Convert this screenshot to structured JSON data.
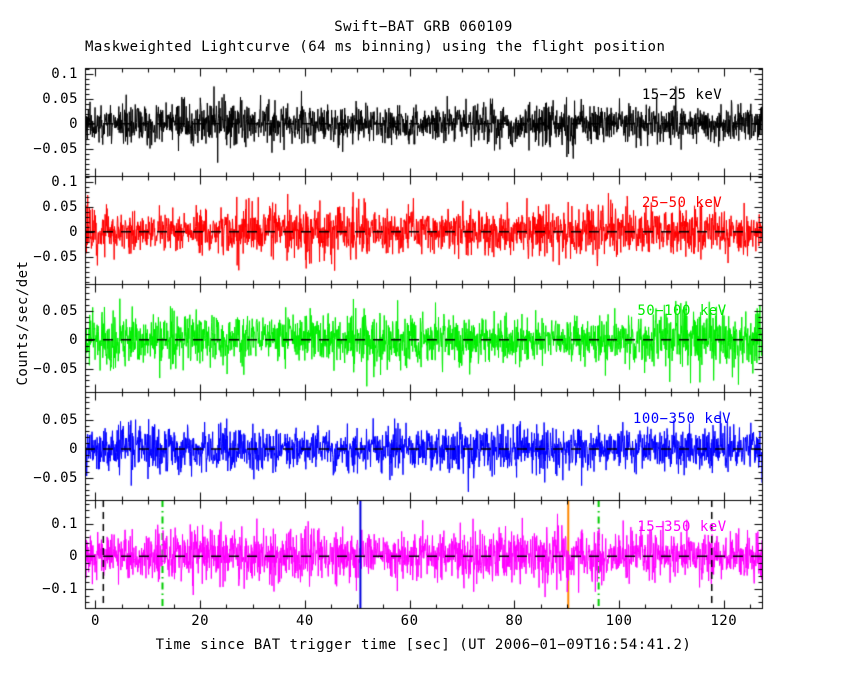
{
  "header": {
    "title": "Swift−BAT GRB 060109",
    "subtitle": "Maskweighted Lightcurve (64 ms binning) using the flight position"
  },
  "axes": {
    "xlabel": "Time since BAT trigger time [sec] (UT 2006−01−09T16:54:41.2)",
    "ylabel": "Counts/sec/det"
  },
  "chart_data": {
    "type": "line",
    "description": "Five stacked mask-weighted lightcurve panels of zero-mean gaussian-like noise (64 ms bins), one per energy band; no obvious burst structure. Dashed black horizontal line at 0 in every panel.",
    "bin_seconds": 0.064,
    "trigger_utc": "2006-01-09T16:54:41.2",
    "x_axis": {
      "min": -2.0,
      "max": 127.3,
      "major_ticks": [
        0,
        20,
        40,
        60,
        80,
        100,
        120
      ],
      "minor_step": 5,
      "unit": "sec"
    },
    "y_unit": "Counts/sec/det",
    "panels": [
      {
        "label": "15−25 keV",
        "color": "#000000",
        "ylim": [
          -0.105,
          0.112
        ],
        "yticks": [
          0.1,
          0.05,
          0,
          -0.05
        ],
        "y_minor_step": 0.01,
        "noise_sigma": 0.021,
        "peak_abs": 0.08,
        "mean": 0,
        "seed": 11,
        "zero_line": true
      },
      {
        "label": "25−50 keV",
        "color": "#ff0000",
        "ylim": [
          -0.105,
          0.112
        ],
        "yticks": [
          0.1,
          0.05,
          0,
          -0.05
        ],
        "y_minor_step": 0.01,
        "noise_sigma": 0.023,
        "peak_abs": 0.09,
        "mean": 0,
        "seed": 22,
        "zero_line": true
      },
      {
        "label": "50−100 keV",
        "color": "#00ee00",
        "ylim": [
          -0.09,
          0.096
        ],
        "yticks": [
          0.05,
          0,
          -0.05
        ],
        "y_minor_step": 0.01,
        "noise_sigma": 0.023,
        "peak_abs": 0.09,
        "mean": 0,
        "seed": 33,
        "zero_line": true
      },
      {
        "label": "100−350 keV",
        "color": "#0000ff",
        "ylim": [
          -0.088,
          0.098
        ],
        "yticks": [
          0.05,
          0,
          -0.05
        ],
        "y_minor_step": 0.01,
        "noise_sigma": 0.018,
        "peak_abs": 0.07,
        "mean": 0,
        "seed": 44,
        "zero_line": true
      },
      {
        "label": "15−350 keV",
        "color": "#ff00ff",
        "ylim": [
          -0.158,
          0.172
        ],
        "yticks": [
          0.1,
          0,
          -0.1
        ],
        "y_minor_step": 0.02,
        "noise_sigma": 0.041,
        "peak_abs": 0.14,
        "mean": 0,
        "seed": 55,
        "zero_line": true
      }
    ],
    "vertical_lines": [
      {
        "time": 1.5,
        "color": "#000000",
        "style": "dashed",
        "panel": 4,
        "layer": "over"
      },
      {
        "time": 12.8,
        "color": "#00cc00",
        "style": "dashdot",
        "panel": 4,
        "layer": "under"
      },
      {
        "time": 50.6,
        "color": "#0000dd",
        "style": "solid",
        "panel": 4,
        "layer": "over"
      },
      {
        "time": 90.3,
        "color": "#ff8800",
        "style": "solid",
        "panel": 4,
        "layer": "under"
      },
      {
        "time": 96.1,
        "color": "#00cc00",
        "style": "dashdot",
        "panel": 4,
        "layer": "under"
      },
      {
        "time": 117.7,
        "color": "#000000",
        "style": "dashed",
        "panel": 4,
        "layer": "over"
      }
    ],
    "zero_line_style": {
      "color": "#000000",
      "dash": [
        10,
        8
      ]
    },
    "legend_position": "none",
    "grid": false
  }
}
